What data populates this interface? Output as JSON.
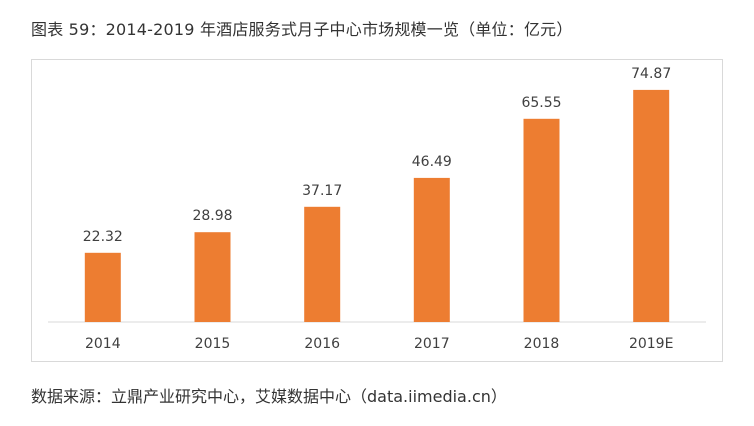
{
  "figure": {
    "title": "图表 59：2014-2019 年酒店服务式月子中心市场规模一览（单位：亿元）",
    "source": "数据来源：立鼎产业研究中心，艾媒数据中心（data.iimedia.cn）"
  },
  "chart_data": {
    "type": "bar",
    "title": "图表 59：2014-2019 年酒店服务式月子中心市场规模一览（单位：亿元）",
    "xlabel": "",
    "ylabel": "",
    "categories": [
      "2014",
      "2015",
      "2016",
      "2017",
      "2018",
      "2019E"
    ],
    "values": [
      22.32,
      28.98,
      37.17,
      46.49,
      65.55,
      74.87
    ],
    "value_labels": [
      "22.32",
      "28.98",
      "37.17",
      "46.49",
      "65.55",
      "74.87"
    ],
    "ylim": [
      0,
      80
    ],
    "grid": false,
    "legend": "none",
    "bar_color": "#ED7D31",
    "axis_color": "#D9D9D9",
    "text_color": "#404040"
  }
}
